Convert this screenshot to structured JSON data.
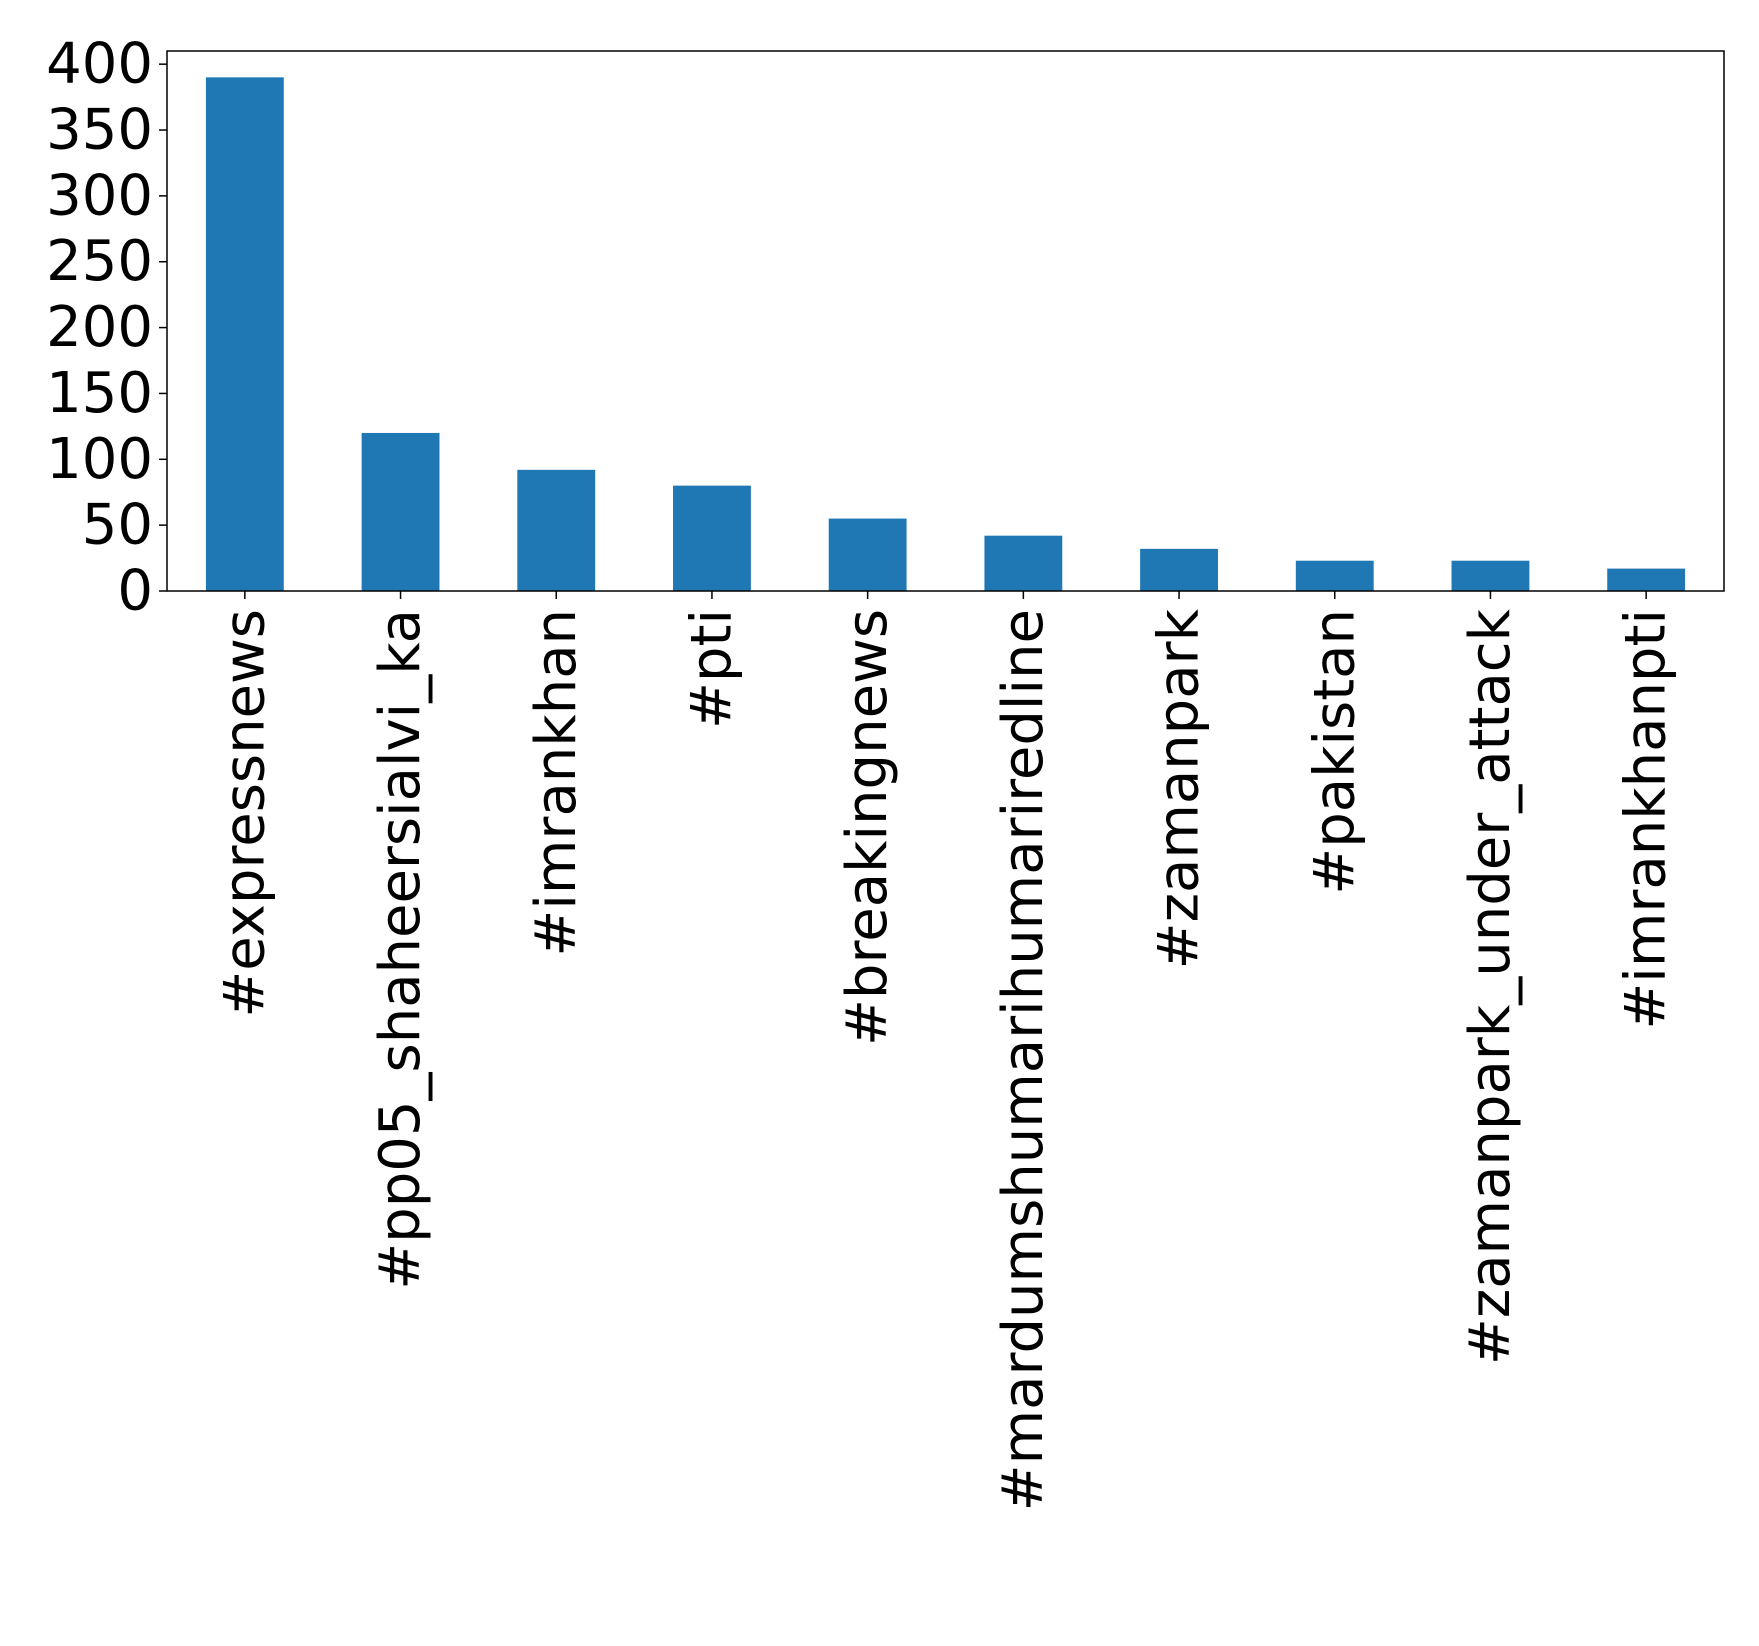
{
  "chart_data": {
    "type": "bar",
    "categories": [
      "#expressnews",
      "#pp05_shaheersialvi_ka",
      "#imrankhan",
      "#pti",
      "#breakingnews",
      "#mardumshumarihumariredline",
      "#zamanpark",
      "#pakistan",
      "#zamanpark_under_attack",
      "#imrankhanpti"
    ],
    "values": [
      390,
      120,
      92,
      80,
      55,
      42,
      32,
      23,
      23,
      17
    ],
    "title": "",
    "xlabel": "",
    "ylabel": "",
    "ylim": [
      0,
      410
    ],
    "yticks": [
      0,
      50,
      100,
      150,
      200,
      250,
      300,
      350,
      400
    ],
    "ytick_labels": [
      "0",
      "50",
      "100",
      "150",
      "200",
      "250",
      "300",
      "350",
      "400"
    ],
    "grid": false,
    "legend": "none",
    "colors": {
      "bar": "#1f77b4",
      "axis": "#000000"
    }
  }
}
